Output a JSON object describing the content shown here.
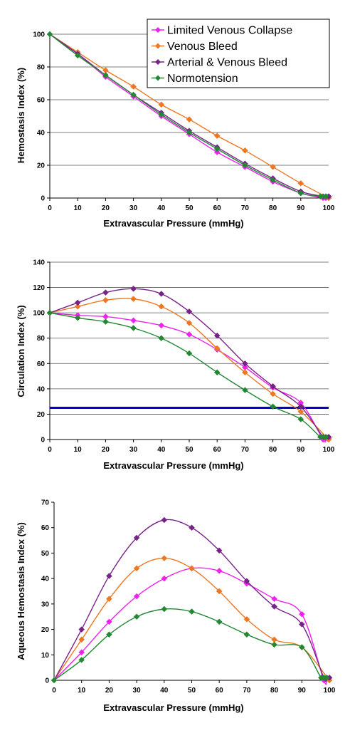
{
  "chart_data": [
    {
      "type": "line",
      "xlabel": "Extravascular Pressure (mmHg)",
      "ylabel": "Hemostasis Index (%)",
      "xlim": [
        0,
        100
      ],
      "ylim": [
        0,
        100
      ],
      "yticks": [
        0,
        20,
        40,
        60,
        80,
        100
      ],
      "xticks": [
        0,
        10,
        20,
        30,
        40,
        50,
        60,
        70,
        80,
        90,
        100
      ],
      "grid": "horizontal",
      "legend": "top-right",
      "series": [
        {
          "name": "Limited Venous Collapse",
          "color": "#ee22ee",
          "x": [
            0,
            10,
            20,
            30,
            40,
            50,
            60,
            70,
            80,
            90,
            98,
            99,
            100,
            100
          ],
          "y": [
            100,
            88,
            74,
            62,
            50,
            39,
            28,
            19,
            10,
            3,
            0,
            0,
            0,
            0
          ]
        },
        {
          "name": "Venous Bleed",
          "color": "#ee7722",
          "x": [
            0,
            10,
            20,
            30,
            40,
            50,
            60,
            70,
            80,
            90,
            100
          ],
          "y": [
            100,
            89,
            78,
            68,
            57,
            48,
            38,
            29,
            19,
            9,
            0
          ]
        },
        {
          "name": "Arterial & Venous Bleed",
          "color": "#772288",
          "x": [
            0,
            10,
            20,
            30,
            40,
            50,
            60,
            70,
            80,
            90,
            98,
            99,
            100,
            100
          ],
          "y": [
            100,
            88,
            75,
            63,
            52,
            41,
            31,
            21,
            12,
            4,
            1,
            1,
            1,
            1
          ]
        },
        {
          "name": "Normotension",
          "color": "#228833",
          "x": [
            0,
            10,
            20,
            30,
            40,
            50,
            60,
            70,
            80,
            90,
            97,
            98,
            99
          ],
          "y": [
            100,
            87,
            75,
            63,
            51,
            40,
            30,
            20,
            11,
            3,
            1,
            1,
            1
          ]
        }
      ]
    },
    {
      "type": "line",
      "xlabel": "Extravascular Pressure (mmHg)",
      "ylabel": "Circulation Index (%)",
      "xlim": [
        0,
        100
      ],
      "ylim": [
        0,
        140
      ],
      "yticks": [
        0,
        20,
        40,
        60,
        80,
        100,
        120,
        140
      ],
      "xticks": [
        0,
        10,
        20,
        30,
        40,
        50,
        60,
        70,
        80,
        90,
        100
      ],
      "grid": "horizontal",
      "reference_line": {
        "y": 25,
        "color": "#0000cc"
      },
      "series": [
        {
          "name": "Limited Venous Collapse",
          "color": "#ee22ee",
          "x": [
            0,
            10,
            20,
            30,
            40,
            50,
            60,
            70,
            80,
            90,
            98,
            99,
            100,
            100
          ],
          "y": [
            100,
            98,
            97,
            94,
            90,
            83,
            71,
            57,
            41,
            29,
            0,
            1,
            0,
            1
          ]
        },
        {
          "name": "Venous Bleed",
          "color": "#ee7722",
          "x": [
            0,
            10,
            20,
            30,
            40,
            50,
            60,
            70,
            80,
            90,
            100
          ],
          "y": [
            100,
            105,
            110,
            111,
            105,
            92,
            72,
            53,
            36,
            22,
            0
          ]
        },
        {
          "name": "Arterial & Venous Bleed",
          "color": "#772288",
          "x": [
            0,
            10,
            20,
            30,
            40,
            50,
            60,
            70,
            80,
            90,
            98,
            99,
            100,
            100
          ],
          "y": [
            100,
            108,
            116,
            119,
            115,
            101,
            82,
            60,
            42,
            26,
            2,
            2,
            2,
            2
          ]
        },
        {
          "name": "Normotension",
          "color": "#228833",
          "x": [
            0,
            10,
            20,
            30,
            40,
            50,
            60,
            70,
            80,
            90,
            97,
            98,
            99
          ],
          "y": [
            100,
            96,
            93,
            88,
            80,
            68,
            53,
            39,
            26,
            16,
            2,
            2,
            2
          ]
        }
      ]
    },
    {
      "type": "line",
      "xlabel": "Extravascular Pressure (mmHg)",
      "ylabel": "Aqueous Hemostasis Index (%)",
      "xlim": [
        0,
        100
      ],
      "ylim": [
        0,
        70
      ],
      "yticks": [
        0,
        10,
        20,
        30,
        40,
        50,
        60,
        70
      ],
      "xticks": [
        0,
        10,
        20,
        30,
        40,
        50,
        60,
        70,
        80,
        90,
        100
      ],
      "grid": "none",
      "series": [
        {
          "name": "Limited Venous Collapse",
          "color": "#ee22ee",
          "x": [
            0,
            10,
            20,
            30,
            40,
            50,
            60,
            70,
            80,
            90,
            98,
            99,
            100,
            100
          ],
          "y": [
            0,
            11,
            23,
            33,
            40,
            44,
            43,
            38,
            32,
            26,
            0,
            1,
            0,
            1
          ]
        },
        {
          "name": "Venous Bleed",
          "color": "#ee7722",
          "x": [
            0,
            10,
            20,
            30,
            40,
            50,
            60,
            70,
            80,
            90,
            100
          ],
          "y": [
            0,
            16,
            32,
            44,
            48,
            44,
            35,
            24,
            16,
            13,
            0
          ]
        },
        {
          "name": "Arterial & Venous Bleed",
          "color": "#772288",
          "x": [
            0,
            10,
            20,
            30,
            40,
            50,
            60,
            70,
            80,
            90,
            98,
            99,
            100,
            100
          ],
          "y": [
            0,
            20,
            41,
            56,
            63,
            60,
            51,
            39,
            29,
            22,
            1,
            1,
            1,
            1
          ]
        },
        {
          "name": "Normotension",
          "color": "#228833",
          "x": [
            0,
            10,
            20,
            30,
            40,
            50,
            60,
            70,
            80,
            90,
            97,
            98,
            99
          ],
          "y": [
            0,
            8,
            18,
            25,
            28,
            27,
            23,
            18,
            14,
            13,
            1,
            1,
            1
          ]
        }
      ]
    }
  ]
}
